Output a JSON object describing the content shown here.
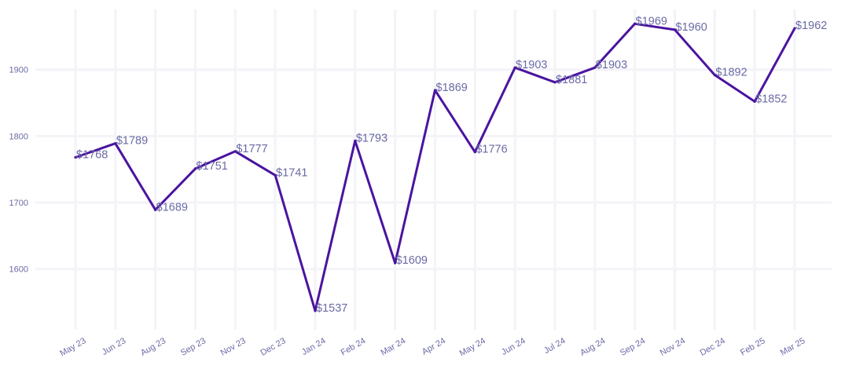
{
  "chart_data": {
    "type": "line",
    "title": "",
    "xlabel": "",
    "ylabel": "",
    "categories": [
      "May 23",
      "Jun 23",
      "Aug 23",
      "Sep 23",
      "Nov 23",
      "Dec 23",
      "Jan 24",
      "Feb 24",
      "Mar 24",
      "Apr 24",
      "May 24",
      "Jun 24",
      "Jul 24",
      "Aug 24",
      "Sep 24",
      "Nov 24",
      "Dec 24",
      "Feb 25",
      "Mar 25"
    ],
    "series": [
      {
        "name": "Price",
        "color": "#4a14a0",
        "values": [
          1768,
          1789,
          1689,
          1751,
          1777,
          1741,
          1537,
          1793,
          1609,
          1869,
          1776,
          1903,
          1881,
          1903,
          1969,
          1960,
          1892,
          1852,
          1962
        ],
        "labels": [
          "$1768",
          "$1789",
          "$1689",
          "$1751",
          "$1777",
          "$1741",
          "$1537",
          "$1793",
          "$1609",
          "$1869",
          "$1776",
          "$1903",
          "$1881",
          "$1903",
          "$1969",
          "$1960",
          "$1892",
          "$1852",
          "$1962"
        ]
      }
    ],
    "yticks": [
      1600,
      1700,
      1800,
      1900
    ],
    "ytick_labels": [
      "1600",
      "1700",
      "1800",
      "1900"
    ],
    "ylim": [
      1515,
      1990
    ],
    "grid": true,
    "legend": "none"
  }
}
